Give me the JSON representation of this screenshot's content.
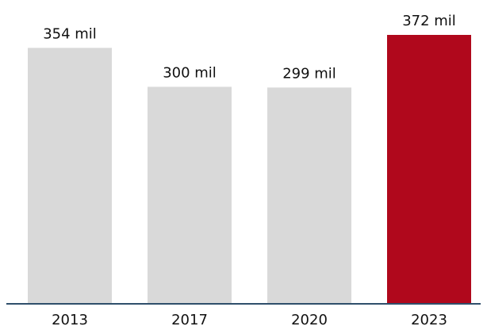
{
  "chart_data": {
    "type": "bar",
    "categories": [
      "2013",
      "2017",
      "2020",
      "2023"
    ],
    "values": [
      354,
      300,
      299,
      372
    ],
    "data_labels": [
      "354 mil",
      "300 mil",
      "299 mil",
      "372 mil"
    ],
    "ylim": [
      0,
      372
    ],
    "grid": false,
    "legend": "none",
    "colors": {
      "default_bar": "#d9d9d9",
      "highlight_bar": "#b0081c",
      "axis": "#2f4f6b",
      "text": "#111111"
    },
    "highlight_index": 3
  }
}
